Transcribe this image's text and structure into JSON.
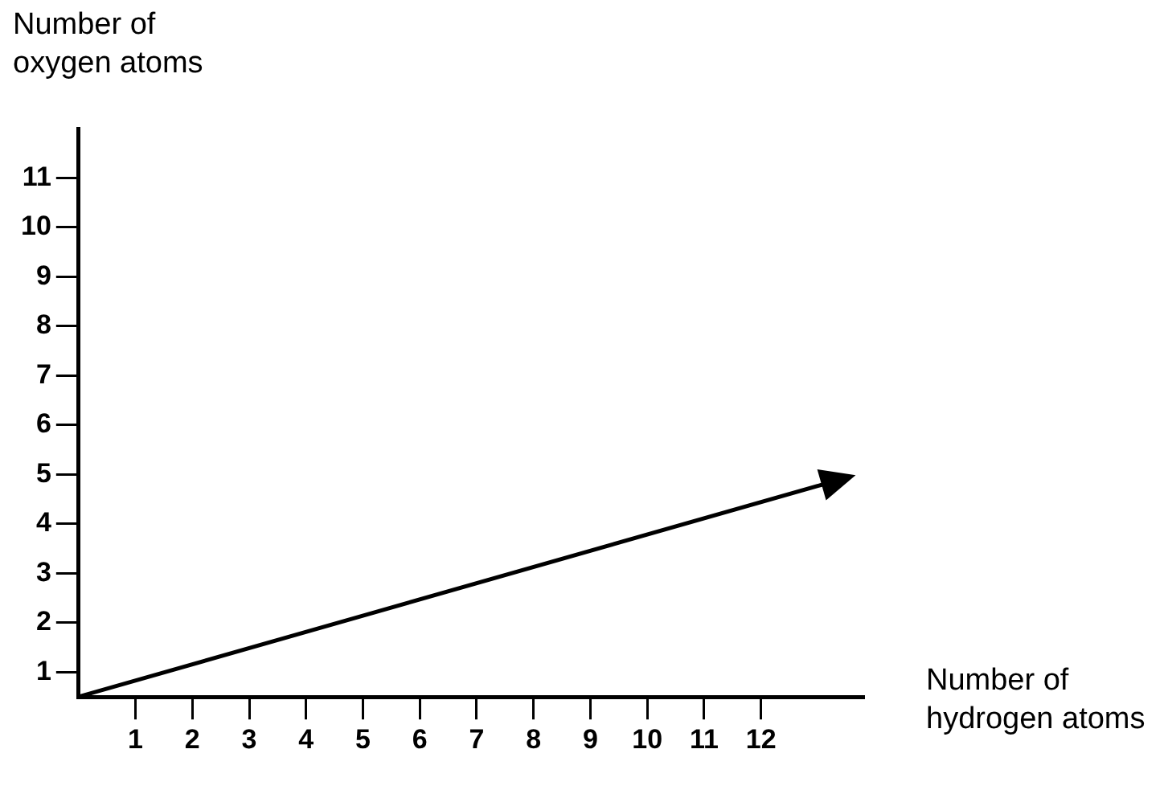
{
  "chart_data": {
    "type": "line",
    "xlabel": "Number of\nhydrogen atoms",
    "ylabel": "Number of\noxygen atoms",
    "xlim": [
      0,
      13.8
    ],
    "ylim": [
      0.5,
      12
    ],
    "xticks": [
      1,
      2,
      3,
      4,
      5,
      6,
      7,
      8,
      9,
      10,
      11,
      12
    ],
    "yticks": [
      1,
      2,
      3,
      4,
      5,
      6,
      7,
      8,
      9,
      10,
      11
    ],
    "grid": false
  }
}
